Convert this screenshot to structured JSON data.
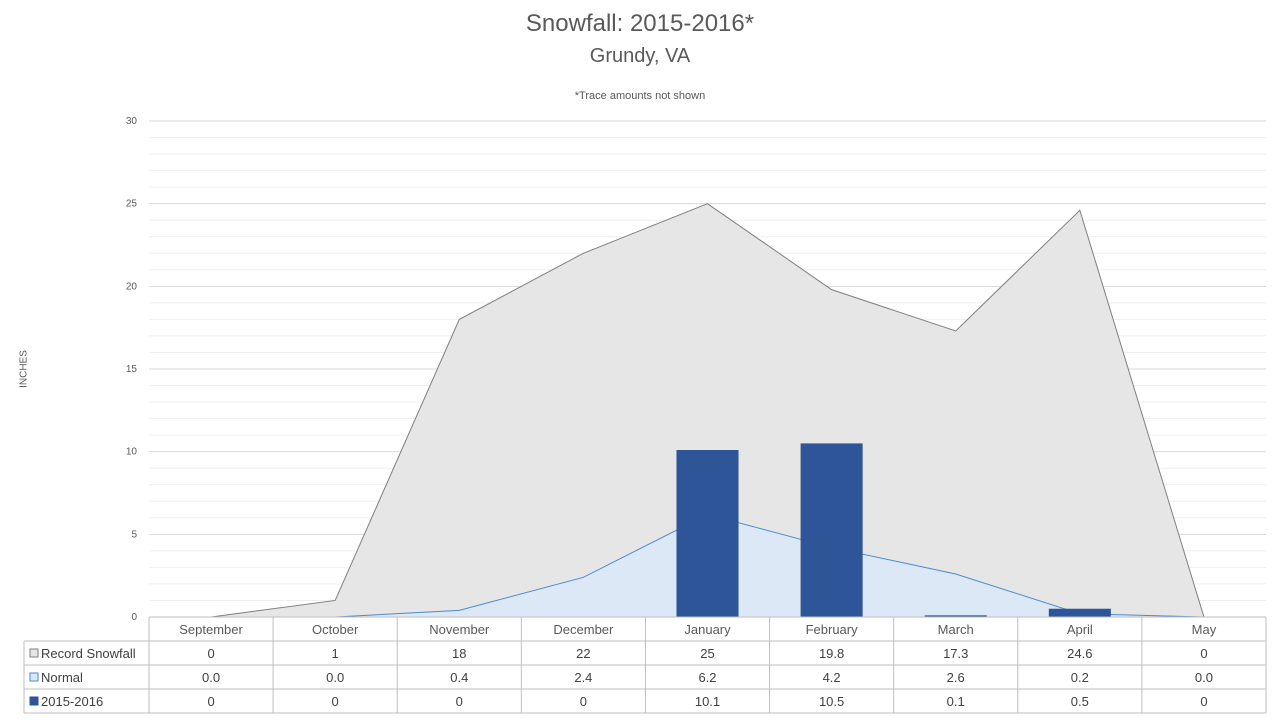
{
  "title": "Snowfall: 2015-2016*",
  "subtitle": "Grundy, VA",
  "note": "*Trace amounts not shown",
  "colors": {
    "record_fill": "#e6e6e6",
    "record_line": "#7f7f7f",
    "normal_fill": "#dde8f6",
    "normal_line": "#4a8bd0",
    "bar": "#2e5597",
    "grid": "#d9d9d9",
    "minor_grid": "#efefef"
  },
  "chart_data": {
    "type": "area",
    "title": "Snowfall: 2015-2016*",
    "subtitle": "Grundy, VA",
    "ylabel": "INCHES",
    "ylim": [
      0,
      30
    ],
    "yticks": [
      "0",
      "5",
      "10",
      "15",
      "20",
      "25",
      "30"
    ],
    "grid": true,
    "legend_placement": "data table",
    "categories": [
      "September",
      "October",
      "November",
      "December",
      "January",
      "February",
      "March",
      "April",
      "May"
    ],
    "series": [
      {
        "name": "Record Snowfall",
        "kind": "area",
        "values": [
          0,
          1,
          18,
          22,
          25,
          19.8,
          17.3,
          24.6,
          0
        ],
        "labels": [
          "0",
          "1",
          "18",
          "22",
          "25",
          "19.8",
          "17.3",
          "24.6",
          "0"
        ]
      },
      {
        "name": "Normal",
        "kind": "area",
        "values": [
          0.0,
          0.0,
          0.4,
          2.4,
          6.2,
          4.2,
          2.6,
          0.2,
          0.0
        ],
        "labels": [
          "0.0",
          "0.0",
          "0.4",
          "2.4",
          "6.2",
          "4.2",
          "2.6",
          "0.2",
          "0.0"
        ]
      },
      {
        "name": "2015-2016",
        "kind": "bar",
        "values": [
          0,
          0,
          0,
          0,
          10.1,
          10.5,
          0.1,
          0.5,
          0
        ],
        "labels": [
          "0",
          "0",
          "0",
          "0",
          "10.1",
          "10.5",
          "0.1",
          "0.5",
          "0"
        ]
      }
    ]
  }
}
